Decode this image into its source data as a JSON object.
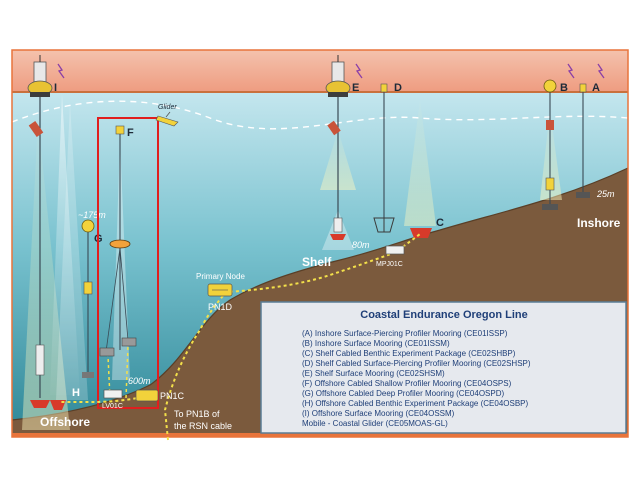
{
  "sites": {
    "A": "A",
    "B": "B",
    "C": "C",
    "D": "D",
    "E": "E",
    "F": "F",
    "G": "G",
    "H": "H",
    "I": "I"
  },
  "depths": {
    "inshore": "25m",
    "shelf": "80m",
    "offshore": "600m",
    "profiler": "~175m"
  },
  "regions": {
    "inshore": "Inshore",
    "shelf": "Shelf",
    "offshore": "Offshore"
  },
  "nodes": {
    "primary_label": "Primary Node",
    "pn1d": "PN1D",
    "pn1c": "PN1C",
    "mpj01c": "MPJ01C",
    "lv01c": "LV01C",
    "rsn_line1": "To PN1B of",
    "rsn_line2": "the RSN cable"
  },
  "glider_label": "Glider",
  "legend": {
    "title": "Coastal Endurance Oregon Line",
    "items": [
      "(A) Inshore Surface-Piercing Profiler Mooring (CE01ISSP)",
      "(B) Inshore Surface Mooring (CE01ISSM)",
      "(C) Shelf Cabled Benthic Experiment Package (CE02SHBP)",
      "(D) Shelf Cabled Surface-Piercing Profiler Mooring (CE02SHSP)",
      "(E) Shelf Surface Mooring (CE02SHSM)",
      "(F) Offshore Cabled Shallow Profiler Mooring (CE04OSPS)",
      "(G) Offshore Cabled Deep Profiler Mooring (CE04OSPD)",
      "(H) Offshore Cabled Benthic Experiment Package (CE04OSBP)",
      "(I) Offshore Surface Mooring (CE04OSSM)",
      "Mobile - Coastal Glider (CE05MOAS-GL)"
    ]
  },
  "colors": {
    "sky": "#f3b8a2",
    "water_top": "#bfe2ea",
    "water_bottom": "#2f8b9a",
    "seafloor": "#7a5a3c",
    "legend_bg": "#e6e9ee",
    "legend_border": "#5a7d95",
    "legend_title": "#1f3f78",
    "cable": "#f3e04a",
    "highlight_box": "#e01e1e",
    "frame": "#e8743b"
  }
}
